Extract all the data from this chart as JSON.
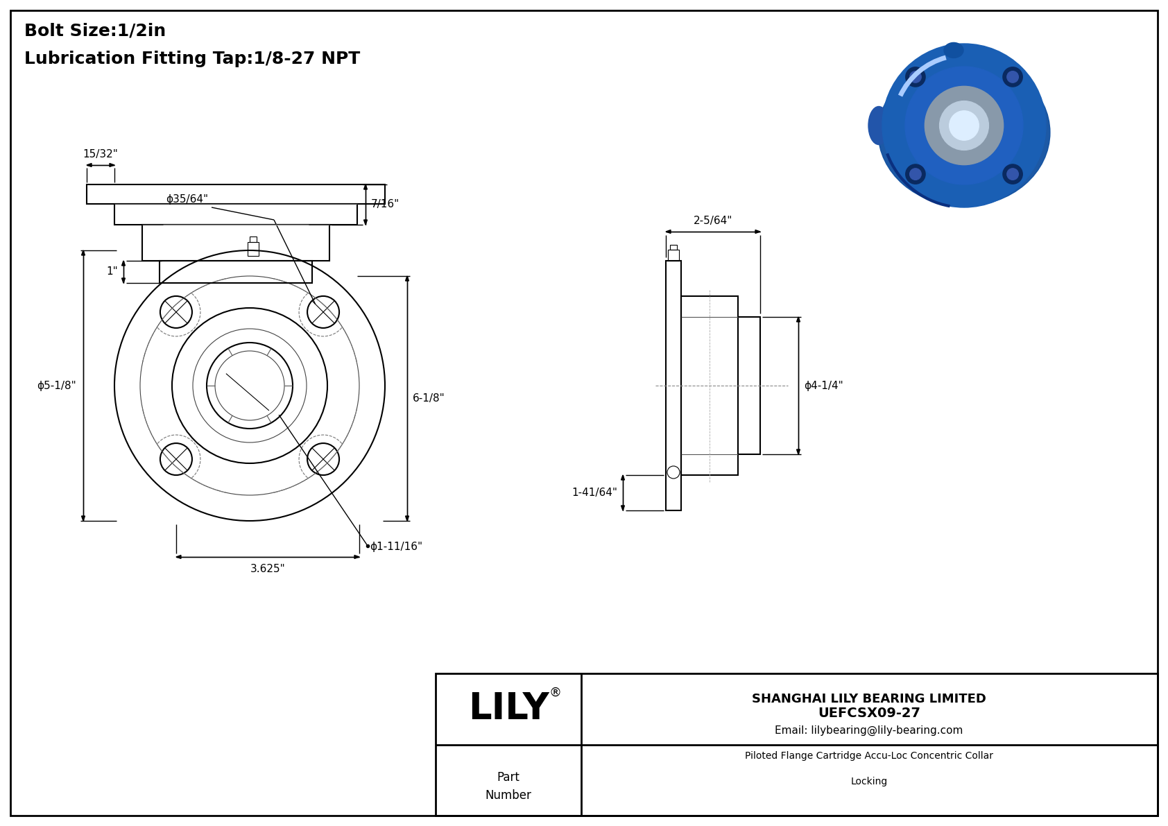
{
  "title_line1": "Bolt Size:1/2in",
  "title_line2": "Lubrication Fitting Tap:1/8-27 NPT",
  "bg_color": "#ffffff",
  "line_color": "#000000",
  "dim_color": "#000000",
  "gray_color": "#888888",
  "light_gray": "#cccccc",
  "company_name": "SHANGHAI LILY BEARING LIMITED",
  "company_email": "Email: lilybearing@lily-bearing.com",
  "part_number_label_line1": "Part",
  "part_number_label_line2": "Number",
  "part_number": "UEFCSX09-27",
  "part_desc_line1": "Piloted Flange Cartridge Accu-Loc Concentric Collar",
  "part_desc_line2": "Locking",
  "lily_logo": "LILY",
  "dim_bolt_hole": "35/64\"",
  "dim_flange_dia": "5-1/8\"",
  "dim_overall_h": "6-1/8\"",
  "dim_bolt_circle": "3.625\"",
  "dim_bore_dia": "1-11/16\"",
  "dim_depth": "2-5/64\"",
  "dim_pilot_dia": "4-1/4\"",
  "dim_base_h": "1-41/64\"",
  "dim_step_h": "1\"",
  "dim_flange_h": "7/16\"",
  "dim_base_w": "15/32\""
}
